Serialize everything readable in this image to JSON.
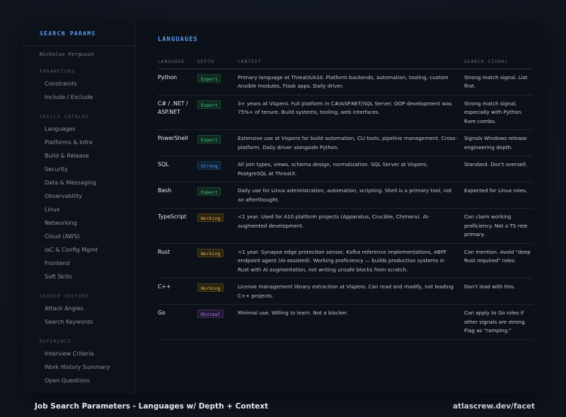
{
  "sidebar": {
    "header": "SEARCH PARAMS",
    "user": "Nicholas Ferguson",
    "sections": [
      {
        "label": "PARAMETERS",
        "items": [
          "Constraints",
          "Include / Exclude"
        ]
      },
      {
        "label": "SKILLS CATALOG",
        "items": [
          "Languages",
          "Platforms & Infra",
          "Build & Release",
          "Security",
          "Data & Messaging",
          "Observability",
          "Linux",
          "Networking",
          "Cloud (AWS)",
          "IaC & Config Mgmt",
          "Frontend",
          "Soft Skills"
        ]
      },
      {
        "label": "SEARCH VECTORS",
        "items": [
          "Attack Angles",
          "Search Keywords"
        ]
      },
      {
        "label": "REFERENCE",
        "items": [
          "Interview Criteria",
          "Work History Summary",
          "Open Questions"
        ]
      }
    ]
  },
  "main": {
    "title": "LANGUAGES",
    "columns": [
      "LANGUAGE",
      "DEPTH",
      "CONTEXT",
      "SEARCH SIGNAL"
    ],
    "rows": [
      {
        "language": "Python",
        "depth": "Expert",
        "level": "expert",
        "context": "Primary language at ThreatX/A10. Platform backends, automation, tooling, custom Ansible modules, Flask apps. Daily driver.",
        "signal": "Strong match signal. List first."
      },
      {
        "language": "C# / .NET / ASP.NET",
        "depth": "Expert",
        "level": "expert",
        "context": "3+ years at Vispero. Full platform in C#/ASP.NET/SQL Server. OOP development was 75%+ of tenure. Build systems, tooling, web interfaces.",
        "signal": "Strong match signal, especially with Python. Rare combo."
      },
      {
        "language": "PowerShell",
        "depth": "Expert",
        "level": "expert",
        "context": "Extensive use at Vispero for build automation, CLI tools, pipeline management. Cross-platform. Daily driver alongside Python.",
        "signal": "Signals Windows release engineering depth."
      },
      {
        "language": "SQL",
        "depth": "Strong",
        "level": "strong",
        "context": "All join types, views, schema design, normalization. SQL Server at Vispero, PostgreSQL at ThreatX.",
        "signal": "Standard. Don't oversell."
      },
      {
        "language": "Bash",
        "depth": "Expert",
        "level": "expert",
        "context": "Daily use for Linux administration, automation, scripting. Shell is a primary tool, not an afterthought.",
        "signal": "Expected for Linux roles."
      },
      {
        "language": "TypeScript",
        "depth": "Working",
        "level": "working",
        "context": "<1 year. Used for A10 platform projects (Apparatus, Crucible, Chimera). AI-augmented development.",
        "signal": "Can claim working proficiency. Not a TS role primary."
      },
      {
        "language": "Rust",
        "depth": "Working",
        "level": "working",
        "context": "<1 year. Synapse edge protection sensor, Kafka reference implementations, eBPF endpoint agent (AI-assisted). Working proficiency — builds production systems in Rust with AI augmentation, not writing unsafe blocks from scratch.",
        "signal": "Can mention. Avoid \"deep Rust required\" roles."
      },
      {
        "language": "C++",
        "depth": "Working",
        "level": "working",
        "context": "License management library extraction at Vispero. Can read and modify, not leading C++ projects.",
        "signal": "Don't lead with this."
      },
      {
        "language": "Go",
        "depth": "Minimal",
        "level": "minimal",
        "context": "Minimal use. Willing to learn. Not a blocker.",
        "signal": "Can apply to Go roles if other signals are strong. Flag as \"ramping.\""
      }
    ]
  },
  "footer": {
    "caption": "Job Search Parameters - Languages w/ Depth + Context",
    "credit": "atlascrew.dev/facet"
  }
}
